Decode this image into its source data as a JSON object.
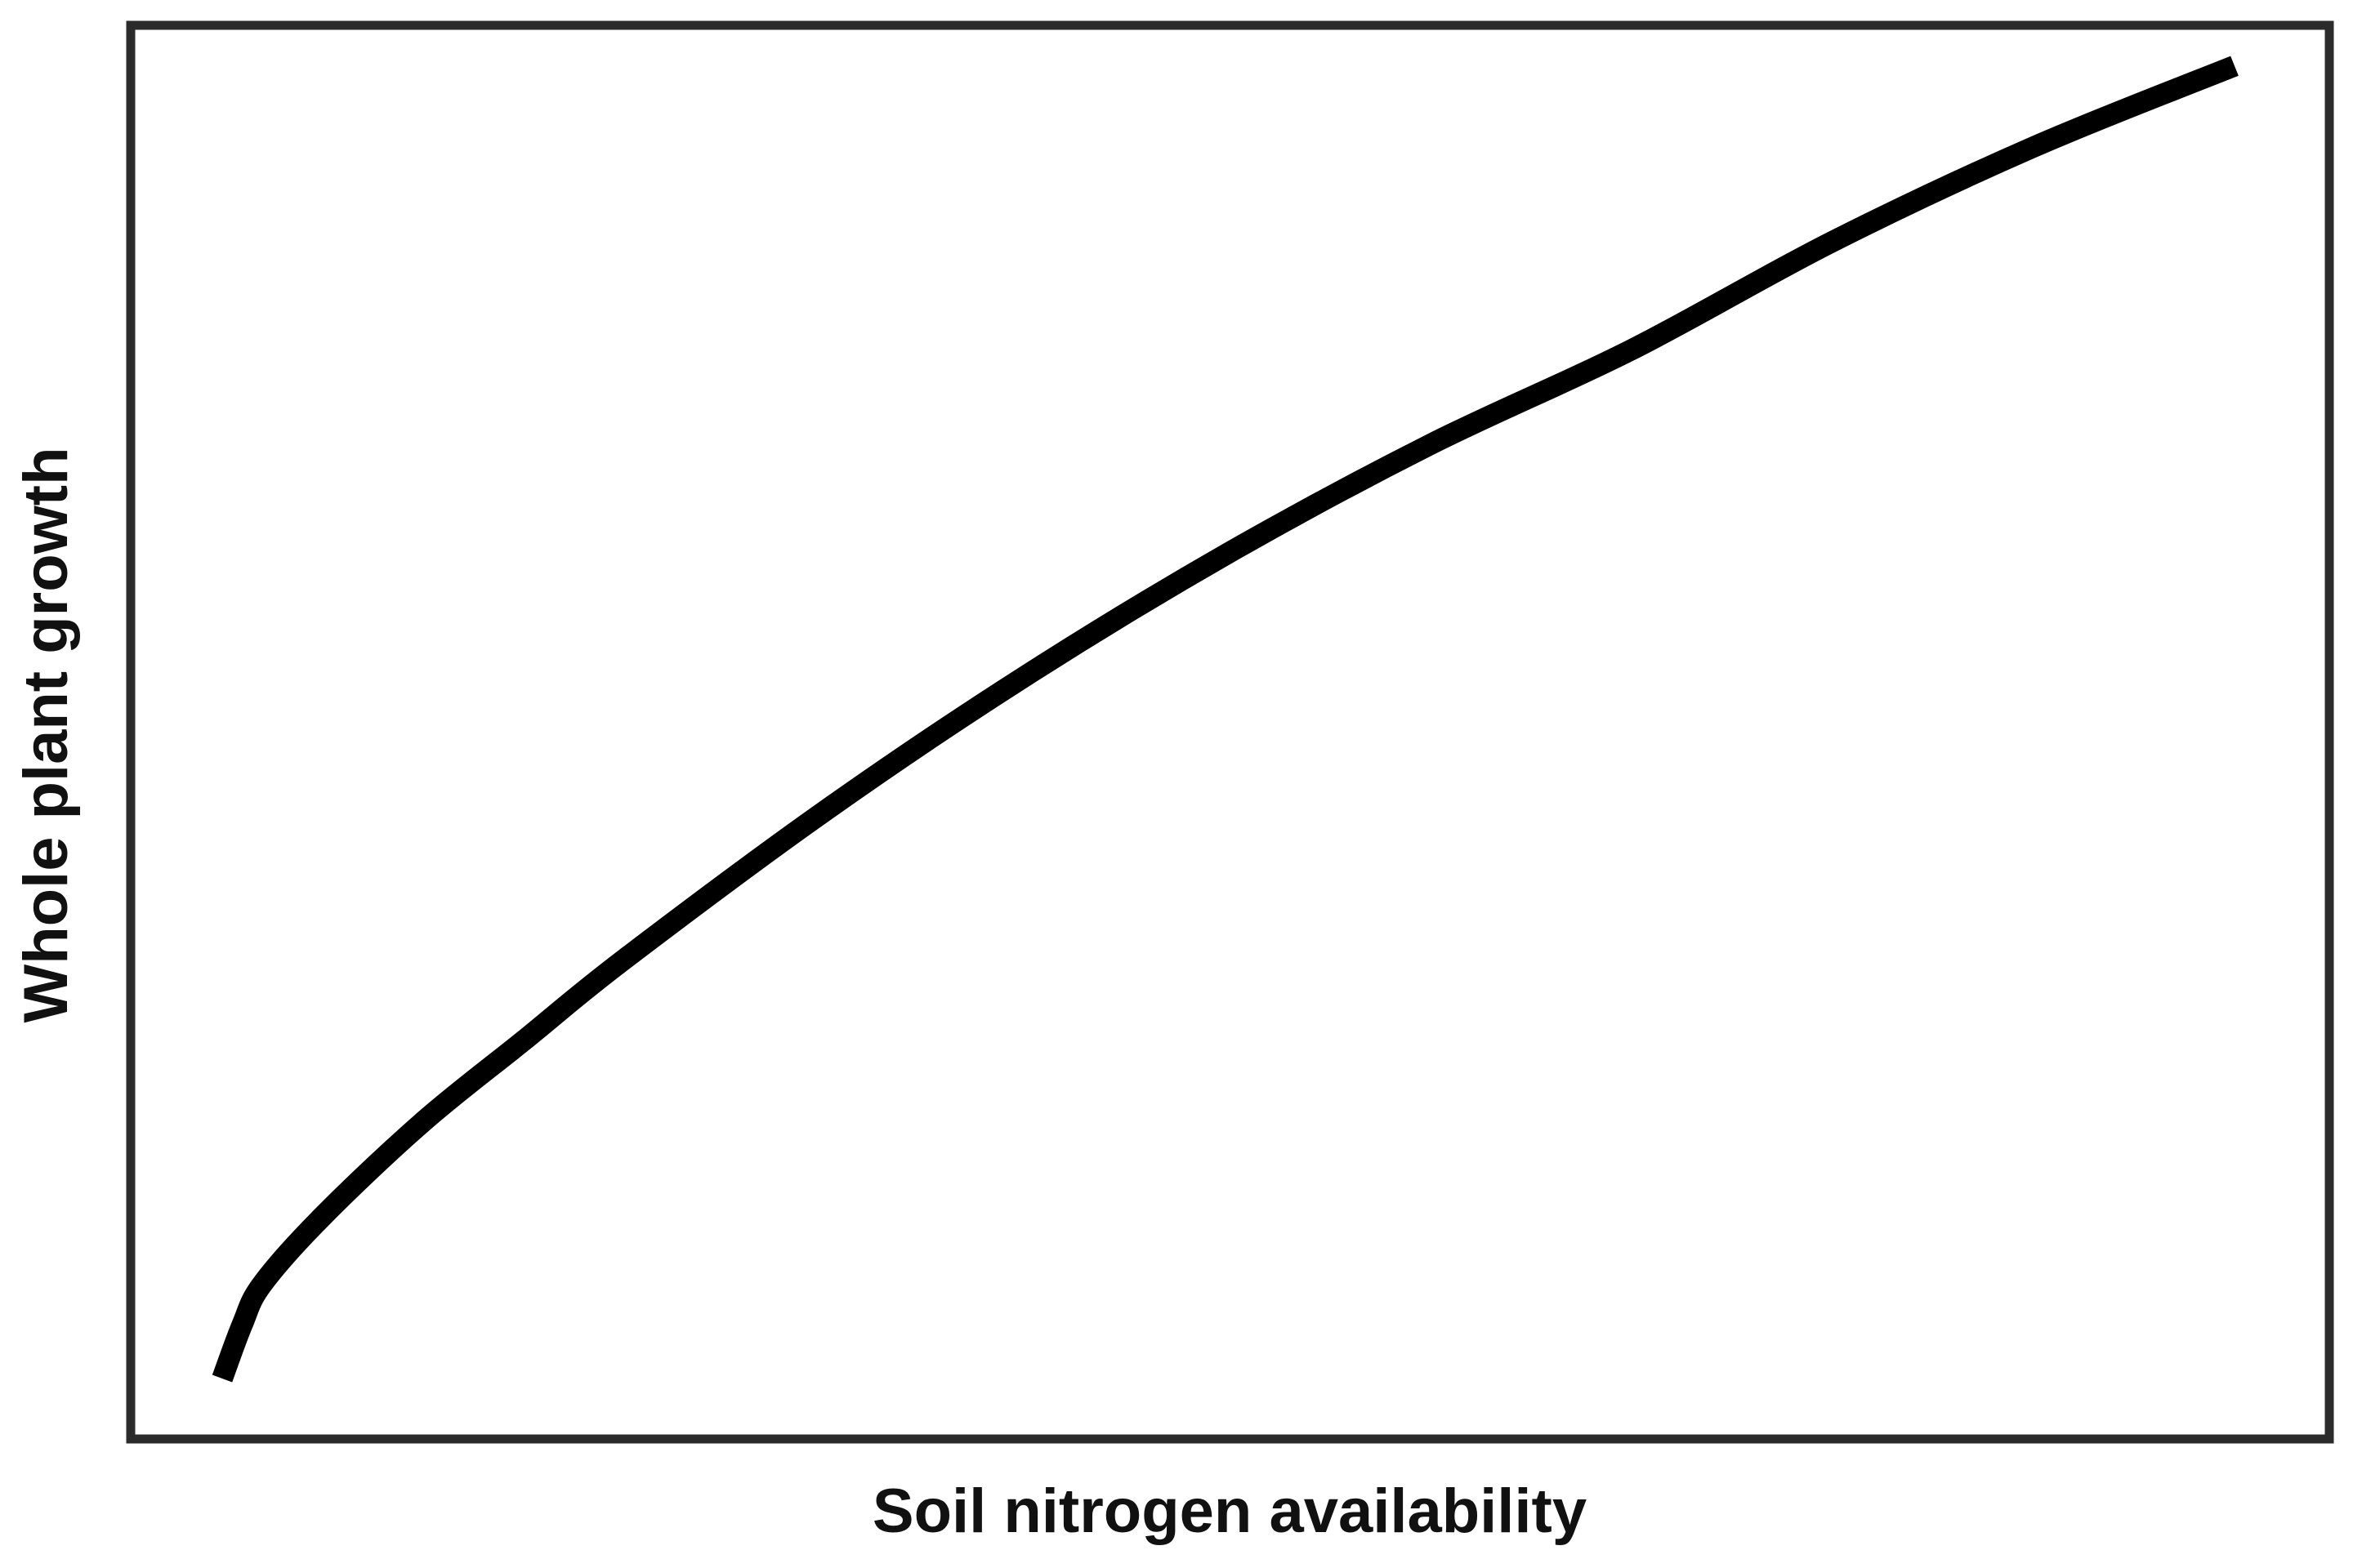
{
  "chart_data": {
    "type": "line",
    "title": "",
    "xlabel": "Soil nitrogen availability",
    "ylabel": "Whole plant growth",
    "xlim": [
      0,
      1
    ],
    "ylim": [
      0,
      1
    ],
    "grid": false,
    "legend": "none",
    "x_ticks_shown": false,
    "y_ticks_shown": false,
    "series": [
      {
        "x": [
          0.0,
          0.01,
          0.02,
          0.05,
          0.1,
          0.15,
          0.2,
          0.3,
          0.4,
          0.5,
          0.6,
          0.7,
          0.8,
          0.9,
          1.0
        ],
        "y": [
          0.0,
          0.04,
          0.07,
          0.12,
          0.19,
          0.25,
          0.31,
          0.42,
          0.52,
          0.61,
          0.69,
          0.76,
          0.84,
          0.91,
          0.97
        ],
        "color": "#000000"
      }
    ],
    "colors": {
      "frame": "#2b2b2b",
      "line": "#000000",
      "text": "#111111",
      "background": "#ffffff"
    }
  }
}
